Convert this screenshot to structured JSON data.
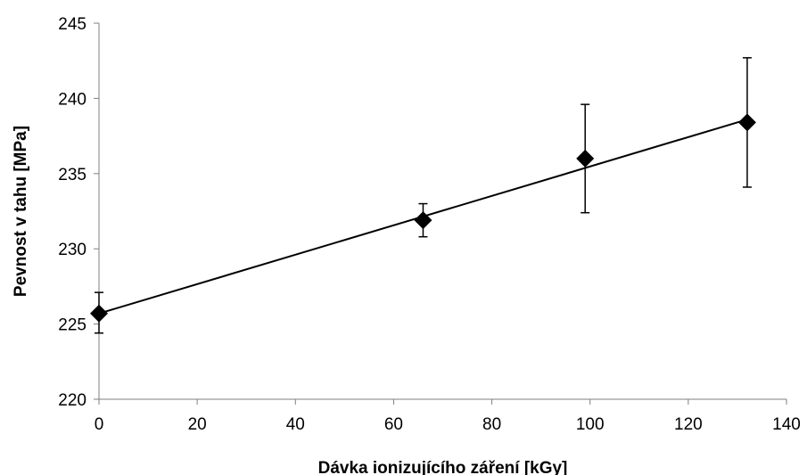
{
  "chart_data": {
    "type": "scatter",
    "title": "",
    "xlabel": "Dávka ionizujícího záření [kGy]",
    "ylabel": "Pevnost v tahu [MPa]",
    "xlim": [
      0,
      140
    ],
    "ylim": [
      220,
      245
    ],
    "xticks": [
      0,
      20,
      40,
      60,
      80,
      100,
      120,
      140
    ],
    "yticks": [
      220,
      225,
      230,
      235,
      240,
      245
    ],
    "grid": false,
    "legend": "none",
    "marker": "diamond",
    "color": "#000000",
    "points": [
      {
        "x": 0,
        "y": 225.7,
        "err_low": 224.4,
        "err_high": 227.1
      },
      {
        "x": 66,
        "y": 231.9,
        "err_low": 230.8,
        "err_high": 233.0
      },
      {
        "x": 99,
        "y": 236.0,
        "err_low": 232.4,
        "err_high": 239.6
      },
      {
        "x": 132,
        "y": 238.4,
        "err_low": 234.1,
        "err_high": 242.7
      }
    ],
    "trendline": {
      "type": "linear",
      "x": [
        0,
        132
      ],
      "y": [
        225.7,
        238.6
      ]
    }
  }
}
